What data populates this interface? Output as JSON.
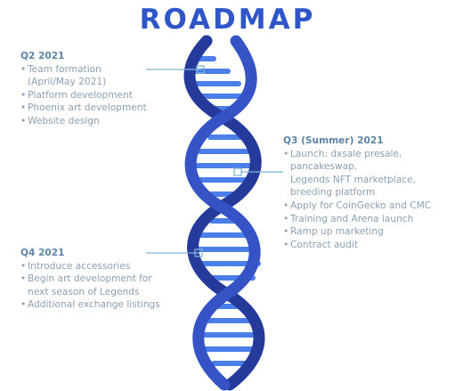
{
  "title": "ROADMAP",
  "colors": {
    "title": "#2f56c9",
    "helix_dark": "#253a9a",
    "helix_mid": "#3553c4",
    "rung": "#4a7ee8",
    "connector": "#7fb5d8",
    "text": "#8aa0b4"
  },
  "q2": {
    "heading": "Q2  2021",
    "items": [
      "Team formation",
      "Platform development",
      "Phoenix art development",
      "Website design"
    ],
    "cont0": "(April/May 2021)"
  },
  "q3": {
    "heading": "Q3 (Summer) 2021",
    "item0": "Launch: dxsale presale,",
    "cont0a": "pancakeswap,",
    "cont0b": "Legends NFT marketplace,",
    "cont0c": "breeding platform",
    "items": [
      "Apply for CoinGecko and CMC",
      "Training and Arena launch",
      "Ramp up marketing",
      "Contract audit"
    ]
  },
  "q4": {
    "heading": "Q4 2021",
    "items": [
      "Introduce accessories",
      "Begin art development for",
      "Additional exchange listings"
    ],
    "cont1": "next season of Legends"
  }
}
